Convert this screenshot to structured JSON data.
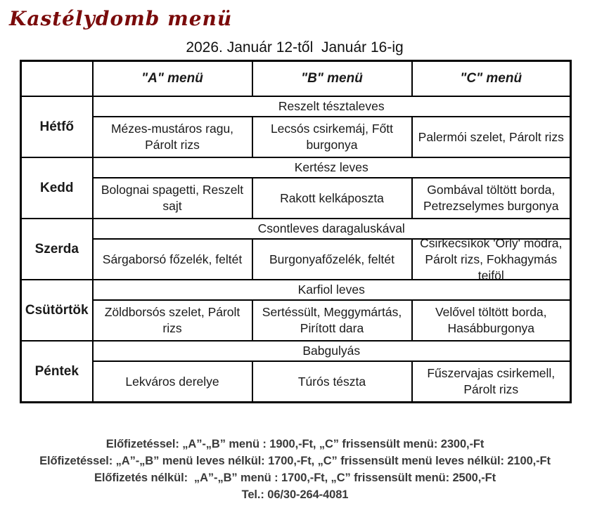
{
  "title": "Kastélydomb menü",
  "date_range": "2026. Január 12-től  Január 16-ig",
  "table": {
    "columns": [
      "\"A\" menü",
      "\"B\" menü",
      "\"C\" menü"
    ],
    "days": [
      {
        "name": "Hétfő",
        "soup": "Reszelt tésztaleves",
        "menus": [
          "Mézes-mustáros ragu, Párolt rizs",
          "Lecsós csirkemáj, Főtt burgonya",
          "Palermói szelet, Párolt rizs"
        ]
      },
      {
        "name": "Kedd",
        "soup": "Kertész leves",
        "menus": [
          "Bolognai spagetti, Reszelt sajt",
          "Rakott kelkáposzta",
          "Gombával töltött borda, Petrezselymes burgonya"
        ]
      },
      {
        "name": "Szerda",
        "soup": "Csontleves daragaluskával",
        "menus": [
          "Sárgaborsó főzelék, feltét",
          "Burgonyafőzelék, feltét",
          "Csirkecsíkok 'Orly' módra, Párolt rizs, Fokhagymás tejföl"
        ]
      },
      {
        "name": "Csütörtök",
        "soup": "Karfiol leves",
        "menus": [
          "Zöldborsós szelet, Párolt rizs",
          "Sertéssült, Meggymártás, Pirított dara",
          "Velővel töltött borda, Hasábburgonya"
        ]
      },
      {
        "name": "Péntek",
        "soup": "Babgulyás",
        "menus": [
          "Lekváros derelye",
          "Túrós tészta",
          "Fűszervajas csirkemell, Párolt rizs"
        ]
      }
    ]
  },
  "footer": {
    "lines": [
      "Előfizetéssel: „A”-„B” menü : 1900,-Ft, „C” frissensült menü: 2300,-Ft",
      "Előfizetéssel: „A”-„B” menü leves nélkül: 1700,-Ft, „C” frissensült menü leves nélkül: 2100,-Ft",
      "Előfizetés nélkül:  „A”-„B” menü : 1700,-Ft, „C” frissensült menü: 2500,-Ft",
      "Tel.: 06/30-264-4081"
    ]
  },
  "colors": {
    "title": "#7a0b0b",
    "table_text": "#1a1a1a",
    "footer_text": "#3a3a3a",
    "border": "#000000",
    "background": "#ffffff"
  }
}
